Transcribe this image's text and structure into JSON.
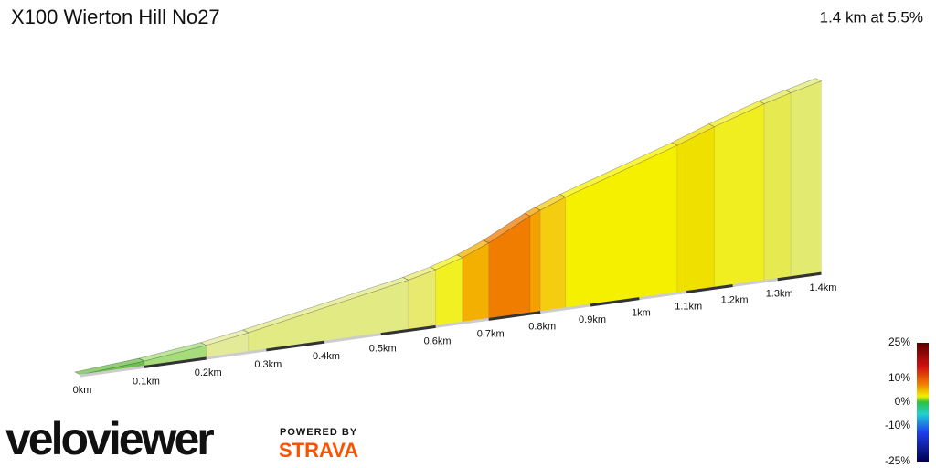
{
  "chart_data": {
    "type": "elevation-profile",
    "title": "X100 Wierton Hill No27",
    "subtitle": "1.4 km at 5.5%",
    "xlim": [
      0,
      1.4
    ],
    "xticks": [
      {
        "value": 0,
        "label": "0km"
      },
      {
        "value": 0.1,
        "label": "0.1km"
      },
      {
        "value": 0.2,
        "label": "0.2km"
      },
      {
        "value": 0.3,
        "label": "0.3km"
      },
      {
        "value": 0.4,
        "label": "0.4km"
      },
      {
        "value": 0.5,
        "label": "0.5km"
      },
      {
        "value": 0.6,
        "label": "0.6km"
      },
      {
        "value": 0.7,
        "label": "0.7km"
      },
      {
        "value": 0.8,
        "label": "0.8km"
      },
      {
        "value": 0.9,
        "label": "0.9km"
      },
      {
        "value": 1,
        "label": "1km"
      },
      {
        "value": 1.1,
        "label": "1.1km"
      },
      {
        "value": 1.2,
        "label": "1.2km"
      },
      {
        "value": 1.3,
        "label": "1.3km"
      },
      {
        "value": 1.4,
        "label": "1.4km"
      }
    ],
    "segments": [
      {
        "start": 0,
        "end": 0.1,
        "gradient": 2,
        "color": "#6cbf4a"
      },
      {
        "start": 0.1,
        "end": 0.2,
        "gradient": 3,
        "color": "#a6dd7a"
      },
      {
        "start": 0.2,
        "end": 0.27,
        "gradient": 4,
        "color": "#e4eb98"
      },
      {
        "start": 0.27,
        "end": 0.55,
        "gradient": 4.5,
        "color": "#e2ea84"
      },
      {
        "start": 0.55,
        "end": 0.6,
        "gradient": 5.5,
        "color": "#e8ea70"
      },
      {
        "start": 0.6,
        "end": 0.65,
        "gradient": 7,
        "color": "#f2f020"
      },
      {
        "start": 0.65,
        "end": 0.7,
        "gradient": 9,
        "color": "#f4b000"
      },
      {
        "start": 0.7,
        "end": 0.78,
        "gradient": 11,
        "color": "#f07c00"
      },
      {
        "start": 0.78,
        "end": 0.8,
        "gradient": 9,
        "color": "#f4a000"
      },
      {
        "start": 0.8,
        "end": 0.85,
        "gradient": 8,
        "color": "#f4cc10"
      },
      {
        "start": 0.85,
        "end": 1.08,
        "gradient": 6.5,
        "color": "#f5f000"
      },
      {
        "start": 1.08,
        "end": 1.16,
        "gradient": 7,
        "color": "#f0e000"
      },
      {
        "start": 1.16,
        "end": 1.27,
        "gradient": 6,
        "color": "#f0ee20"
      },
      {
        "start": 1.27,
        "end": 1.33,
        "gradient": 5,
        "color": "#e6ea50"
      },
      {
        "start": 1.33,
        "end": 1.4,
        "gradient": 4.5,
        "color": "#e2ea70"
      }
    ],
    "color_scale": {
      "lim": [
        -25,
        25
      ],
      "ticks": [
        {
          "value": 25,
          "label": "25%"
        },
        {
          "value": 10,
          "label": "10%"
        },
        {
          "value": 0,
          "label": "0%"
        },
        {
          "value": -10,
          "label": "-10%"
        },
        {
          "value": -25,
          "label": "-25%"
        }
      ]
    }
  },
  "branding": {
    "logo": "veloviewer",
    "powered": "POWERED BY",
    "strava": "STRAVA"
  }
}
